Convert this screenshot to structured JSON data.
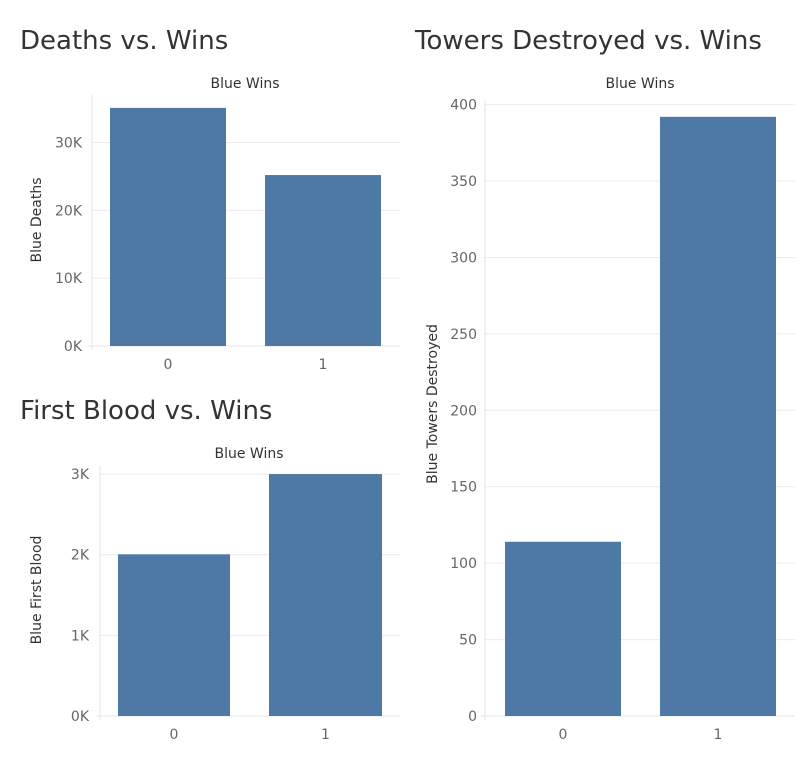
{
  "charts": [
    {
      "title": "Deaths vs. Wins",
      "chart_data": {
        "type": "bar",
        "title": "Deaths vs. Wins",
        "xlabel": "Blue Wins",
        "ylabel": "Blue Deaths",
        "categories": [
          "0",
          "1"
        ],
        "values": [
          35100,
          25200
        ],
        "ylim": [
          0,
          37000
        ],
        "yticks": [
          0,
          10000,
          20000,
          30000
        ],
        "ytick_labels": [
          "0K",
          "10K",
          "20K",
          "30K"
        ],
        "color": "#4e79a7",
        "grid": true
      }
    },
    {
      "title": "First Blood vs. Wins",
      "chart_data": {
        "type": "bar",
        "title": "First Blood vs. Wins",
        "xlabel": "Blue Wins",
        "ylabel": "Blue First Blood",
        "categories": [
          "0",
          "1"
        ],
        "values": [
          2005,
          3000
        ],
        "ylim": [
          0,
          3100
        ],
        "yticks": [
          0,
          1000,
          2000,
          3000
        ],
        "ytick_labels": [
          "0K",
          "1K",
          "2K",
          "3K"
        ],
        "color": "#4e79a7",
        "grid": true
      }
    },
    {
      "title": "Towers Destroyed vs. Wins",
      "chart_data": {
        "type": "bar",
        "title": "Towers Destroyed vs. Wins",
        "xlabel": "Blue Wins",
        "ylabel": "Blue Towers Destroyed",
        "categories": [
          "0",
          "1"
        ],
        "values": [
          114,
          392
        ],
        "ylim": [
          0,
          403
        ],
        "yticks": [
          0,
          50,
          100,
          150,
          200,
          250,
          300,
          350,
          400
        ],
        "ytick_labels": [
          "0",
          "50",
          "100",
          "150",
          "200",
          "250",
          "300",
          "350",
          "400"
        ],
        "color": "#4e79a7",
        "grid": true
      }
    }
  ]
}
